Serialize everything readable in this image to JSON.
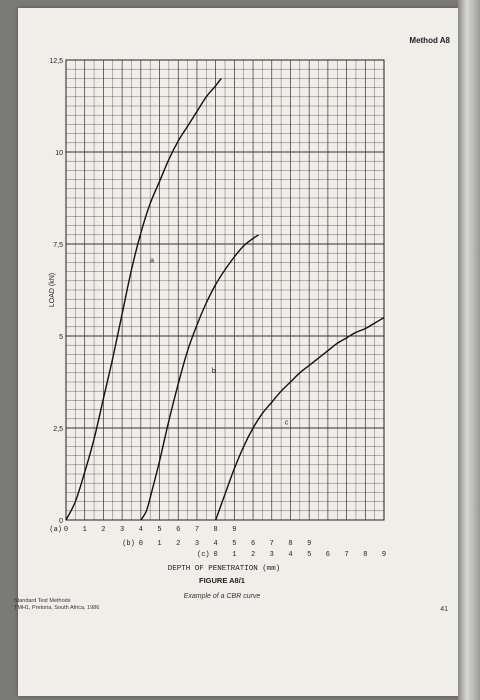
{
  "header": {
    "section": "Method A8"
  },
  "footer": {
    "line1": "Standard Test Methods",
    "line2": "TMH1, Pretoria, South Africa, 1986",
    "page_number": "41"
  },
  "chart_data": {
    "type": "line",
    "title": "FIGURE A8/1",
    "subtitle": "Example of a CBR curve",
    "xlabel": "DEPTH OF PENETRATION (mm)",
    "ylabel": "LOAD (kN)",
    "ylim": [
      0,
      12.5
    ],
    "yticks": [
      {
        "value": 0,
        "label": "0"
      },
      {
        "value": 2.5,
        "label": "2,5"
      },
      {
        "value": 5,
        "label": "5"
      },
      {
        "value": 7.5,
        "label": "7,5"
      },
      {
        "value": 10,
        "label": "10"
      },
      {
        "value": 12.5,
        "label": "12,5"
      }
    ],
    "grid": true,
    "axis_rows": [
      {
        "label": "(a)",
        "offset": 0,
        "ticks": [
          "0",
          "1",
          "2",
          "3",
          "4",
          "5",
          "6",
          "7",
          "8",
          "9"
        ]
      },
      {
        "label": "(b)",
        "offset": 4,
        "ticks": [
          "0",
          "1",
          "2",
          "3",
          "4",
          "5",
          "6",
          "7",
          "8",
          "9"
        ]
      },
      {
        "label": "(c)",
        "offset": 8,
        "ticks": [
          "0",
          "1",
          "2",
          "3",
          "4",
          "5",
          "6",
          "7",
          "8",
          "9"
        ]
      }
    ],
    "series": [
      {
        "name": "a",
        "offset": 0,
        "points": [
          [
            0,
            0
          ],
          [
            0.5,
            0.5
          ],
          [
            1,
            1.3
          ],
          [
            1.5,
            2.2
          ],
          [
            2,
            3.3
          ],
          [
            2.5,
            4.4
          ],
          [
            3,
            5.6
          ],
          [
            3.5,
            6.8
          ],
          [
            4,
            7.8
          ],
          [
            4.5,
            8.6
          ],
          [
            5,
            9.2
          ],
          [
            5.5,
            9.8
          ],
          [
            6,
            10.3
          ],
          [
            6.5,
            10.7
          ],
          [
            7,
            11.1
          ],
          [
            7.5,
            11.5
          ],
          [
            8,
            11.8
          ],
          [
            8.3,
            12.0
          ]
        ]
      },
      {
        "name": "b",
        "offset": 4,
        "points": [
          [
            0,
            0
          ],
          [
            0.3,
            0.25
          ],
          [
            0.6,
            0.8
          ],
          [
            1,
            1.6
          ],
          [
            1.5,
            2.7
          ],
          [
            2,
            3.7
          ],
          [
            2.5,
            4.6
          ],
          [
            3,
            5.3
          ],
          [
            3.5,
            5.9
          ],
          [
            4,
            6.4
          ],
          [
            4.5,
            6.8
          ],
          [
            5,
            7.15
          ],
          [
            5.5,
            7.45
          ],
          [
            6,
            7.65
          ],
          [
            6.3,
            7.75
          ]
        ]
      },
      {
        "name": "c",
        "offset": 8,
        "points": [
          [
            0,
            0
          ],
          [
            0.5,
            0.7
          ],
          [
            1,
            1.4
          ],
          [
            1.5,
            2.0
          ],
          [
            2,
            2.5
          ],
          [
            2.5,
            2.9
          ],
          [
            3,
            3.2
          ],
          [
            3.5,
            3.5
          ],
          [
            4,
            3.75
          ],
          [
            4.5,
            4.0
          ],
          [
            5,
            4.2
          ],
          [
            5.5,
            4.4
          ],
          [
            6,
            4.6
          ],
          [
            6.5,
            4.8
          ],
          [
            7,
            4.95
          ],
          [
            7.5,
            5.1
          ],
          [
            8,
            5.2
          ],
          [
            8.5,
            5.35
          ],
          [
            9,
            5.5
          ]
        ]
      }
    ],
    "label_points": [
      {
        "name": "a",
        "x": 4.5,
        "y": 7.0
      },
      {
        "name": "b",
        "x": 7.8,
        "y": 4.0
      },
      {
        "name": "c",
        "x": 11.7,
        "y": 2.6
      }
    ]
  }
}
